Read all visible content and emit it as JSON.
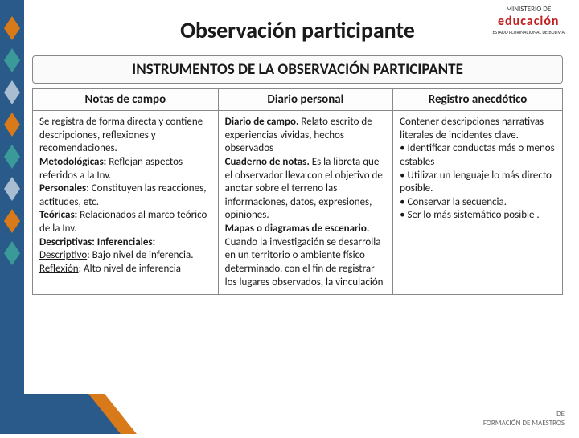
{
  "logo": {
    "line1": "MINISTERIO DE",
    "line2": "educación",
    "line3": "ESTADO PLURINACIONAL DE BOLIVIA"
  },
  "footer": {
    "line1": "DE",
    "line2": "FORMACIÓN DE MAESTROS"
  },
  "title": "Observación participante",
  "section": "INSTRUMENTOS DE LA OBSERVACIÓN PARTICIPANTE",
  "columns": {
    "col0": {
      "header": "Notas de campo",
      "width": "35%"
    },
    "col1": {
      "header": "Diario personal",
      "width": "33%"
    },
    "col2": {
      "header": "Registro anecdótico",
      "width": "32%"
    }
  },
  "cells": {
    "c0": {
      "p1": "Se registra de forma directa y contiene descripciones, reflexiones y recomendaciones.",
      "b1": "Metodológicas:",
      "t1": " Reflejan aspectos referidos a la Inv.",
      "b2": "Personales:",
      "t2": " Constituyen las reacciones, actitudes, etc.",
      "b3": "Teóricas:",
      "t3": " Relacionados al marco teórico de la Inv.",
      "b4": "Descriptivas:  Inferenciales:",
      "u1": "Descriptivo",
      "t5": ": Bajo nivel de inferencia.",
      "u2": "Reflexión",
      "t6": ": Alto nivel de inferencia"
    },
    "c1": {
      "b1": "Diario de campo.",
      "t1": " Relato escrito de  experiencias vividas, hechos observados",
      "b2": "Cuaderno de notas.",
      "t2": " Es la libreta que el observador lleva con el objetivo de anotar sobre el terreno las informaciones, datos, expresiones, opiniones.",
      "b3": "Mapas o diagramas de escenario.",
      "t3": " Cuando la investigación se desarrolla en un territorio o ambiente físico determinado, con el fin de registrar los lugares observados, la vinculación"
    },
    "c2": {
      "t1": "Contener descripciones narrativas literales de incidentes clave.",
      "t2": "• Identificar conductas más o menos estables",
      "t3": "• Utilizar un lenguaje lo más directo posible.",
      "t4": "• Conservar la secuencia.",
      "t5": "• Ser lo más sistemático posible ."
    }
  },
  "colors": {
    "deco_blue": "#2a5a8a",
    "deco_orange": "#d97a1a",
    "deco_teal": "#3a9a9a",
    "deco_red": "#c02020",
    "border": "#888888",
    "text": "#1a1a1a"
  }
}
